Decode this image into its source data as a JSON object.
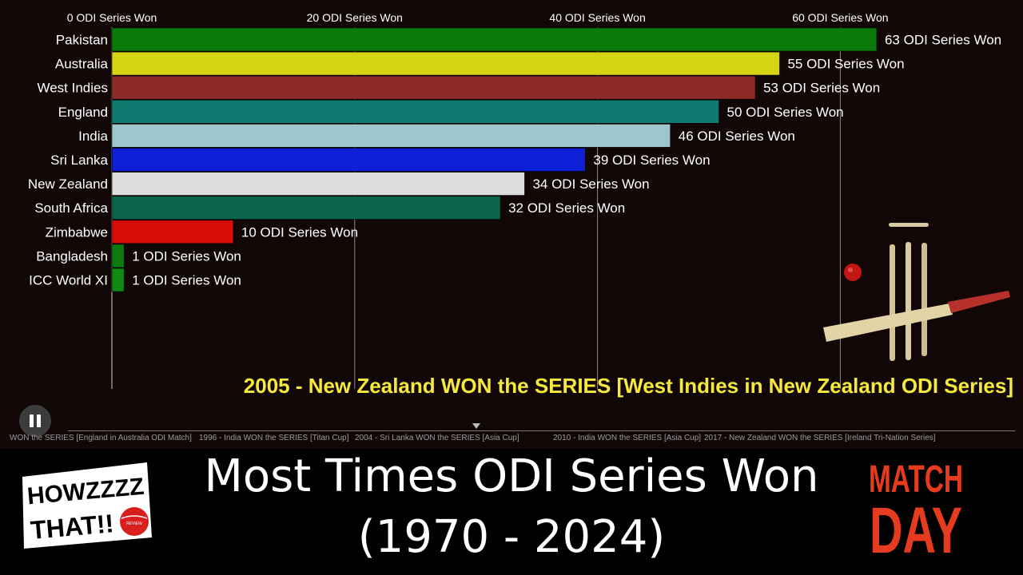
{
  "colors": {
    "background": "#120707",
    "caption": "#f7e93b",
    "matchday": "#e63b1e"
  },
  "chart_data": {
    "type": "bar",
    "orientation": "horizontal",
    "axis_label_suffix": " ODI Series Won",
    "xlim": [
      0,
      63
    ],
    "ticks": [
      0,
      20,
      40,
      60
    ],
    "tick_labels": [
      "0 ODI Series Won",
      "20 ODI Series Won",
      "40 ODI Series Won",
      "60 ODI Series Won"
    ],
    "categories": [
      "Pakistan",
      "Australia",
      "West Indies",
      "England",
      "India",
      "Sri Lanka",
      "New Zealand",
      "South Africa",
      "Zimbabwe",
      "Bangladesh",
      "ICC World XI"
    ],
    "values": [
      63,
      55,
      53,
      50,
      46,
      39,
      34,
      32,
      10,
      1,
      1
    ],
    "value_labels": [
      "63 ODI Series Won",
      "55 ODI Series Won",
      "53 ODI Series Won",
      "50 ODI Series Won",
      "46 ODI Series Won",
      "39 ODI Series Won",
      "34 ODI Series Won",
      "32 ODI Series Won",
      "10 ODI Series Won",
      "1 ODI Series Won",
      "1 ODI Series Won"
    ],
    "bar_colors": [
      "#0c7a08",
      "#d7d414",
      "#8b2a26",
      "#0f7a70",
      "#9ec6cd",
      "#0e1fd6",
      "#dddddb",
      "#0b6449",
      "#d90b09",
      "#0f7a0f",
      "#0f8a12"
    ],
    "grid": true
  },
  "event_caption": "2005 - New Zealand WON the SERIES [West Indies in New Zealand ODI Series]",
  "timeline": {
    "ticks": [
      "WON the SERIES [England in Australia ODI Match]",
      "1996 - India WON the SERIES [Titan Cup]",
      "2004 - Sri Lanka WON the SERIES [Asia Cup]",
      "2010 - India WON the SERIES [Asia Cup]",
      "2017 - New Zealand WON the SERIES [Ireland Tri-Nation Series]"
    ]
  },
  "video_title": {
    "line1": "Most Times ODI Series Won",
    "line2": "(1970 - 2024)"
  },
  "logos": {
    "howzat": {
      "line1": "HOWZZZZ",
      "line2": "THAT!!",
      "ball_text": "REVIEW"
    },
    "matchday": {
      "line1": "MATCH",
      "line2": "DAY"
    }
  },
  "controls": {
    "pause_icon": "pause-icon",
    "marker_icon": "timeline-marker-icon"
  }
}
